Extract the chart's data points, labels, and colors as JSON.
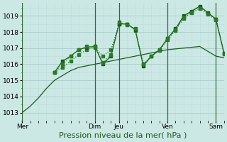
{
  "bg_color": "#cce8e4",
  "grid_color_major": "#aacccc",
  "grid_color_minor": "#bbdddd",
  "line_color1": "#1a5c1a",
  "line_color2": "#2a7a2a",
  "line_color3": "#1a5c1a",
  "line_color4": "#2a7a2a",
  "xlabel": "Pression niveau de la mer( hPa )",
  "xlabel_fontsize": 8,
  "ylim": [
    1012.5,
    1019.8
  ],
  "yticks": [
    1013,
    1014,
    1015,
    1016,
    1017,
    1018,
    1019
  ],
  "ytick_fontsize": 6.5,
  "xtick_fontsize": 6.5,
  "day_labels": [
    "Mer",
    "Dim",
    "Jeu",
    "Ven",
    "Sam"
  ],
  "day_x": [
    0,
    18,
    24,
    36,
    48
  ],
  "xmax": 50,
  "series1_x": [
    0,
    2,
    4,
    6,
    8,
    10,
    12,
    14,
    16,
    18,
    20,
    22,
    24,
    26,
    28,
    30,
    32,
    34,
    36,
    38,
    40,
    42,
    44,
    46,
    48,
    50
  ],
  "series1_y": [
    1013.0,
    1013.4,
    1013.9,
    1014.5,
    1015.0,
    1015.3,
    1015.6,
    1015.8,
    1015.9,
    1016.0,
    1016.1,
    1016.2,
    1016.3,
    1016.4,
    1016.5,
    1016.6,
    1016.7,
    1016.8,
    1016.9,
    1016.95,
    1017.0,
    1017.05,
    1017.1,
    1016.8,
    1016.5,
    1016.4
  ],
  "series2_x": [
    8,
    10,
    12,
    14,
    16,
    18,
    20,
    22,
    24,
    26,
    28,
    30,
    32,
    34,
    36,
    38,
    40,
    42,
    44,
    46,
    48,
    50
  ],
  "series2_y": [
    1015.5,
    1015.8,
    1016.2,
    1016.6,
    1016.9,
    1017.05,
    1016.5,
    1016.9,
    1018.5,
    1018.5,
    1018.1,
    1016.0,
    1016.5,
    1016.85,
    1017.5,
    1018.1,
    1018.85,
    1019.25,
    1019.55,
    1019.15,
    1018.8,
    1016.7
  ],
  "series3_x": [
    8,
    10,
    12,
    14,
    16,
    18,
    20,
    22,
    24,
    26,
    28,
    30,
    32,
    34,
    36,
    38,
    40,
    42,
    44,
    46,
    48,
    50
  ],
  "series3_y": [
    1015.5,
    1016.2,
    1016.5,
    1016.9,
    1017.05,
    1017.1,
    1016.0,
    1016.5,
    1018.5,
    1018.5,
    1018.15,
    1015.9,
    1016.5,
    1016.9,
    1017.6,
    1018.2,
    1019.0,
    1019.3,
    1019.6,
    1019.2,
    1018.8,
    1016.7
  ],
  "series4_x": [
    8,
    10,
    12,
    14,
    16,
    18,
    20,
    22,
    24,
    26,
    28,
    30,
    32,
    34,
    36,
    38,
    40,
    42,
    44,
    46,
    48,
    50
  ],
  "series4_y": [
    1015.5,
    1016.0,
    1016.5,
    1016.9,
    1017.1,
    1017.1,
    1016.1,
    1016.6,
    1018.6,
    1018.45,
    1018.2,
    1016.0,
    1016.5,
    1016.9,
    1017.6,
    1018.15,
    1018.9,
    1019.2,
    1019.45,
    1019.1,
    1018.75,
    1016.65
  ]
}
